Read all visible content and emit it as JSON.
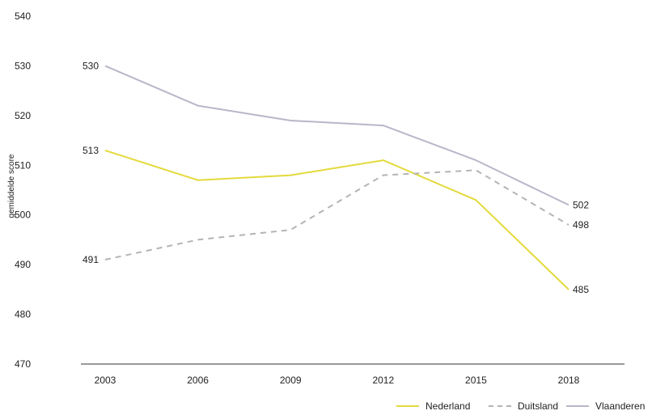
{
  "chart_data": {
    "type": "line",
    "title": "",
    "xlabel": "",
    "ylabel": "gemiddelde score",
    "x": [
      "2003",
      "2006",
      "2009",
      "2012",
      "2015",
      "2018"
    ],
    "ylim": [
      470,
      540
    ],
    "yticks": [
      470,
      480,
      490,
      500,
      510,
      520,
      530,
      540
    ],
    "grid": false,
    "legend_position": "bottom-right",
    "series": [
      {
        "name": "Nederland",
        "color": "#e3da3c",
        "dash": "solid",
        "values": [
          513,
          507,
          508,
          511,
          503,
          485
        ]
      },
      {
        "name": "Duitsland",
        "color": "#b4b4b4",
        "dash": "dashed",
        "values": [
          491,
          495,
          497,
          508,
          509,
          498
        ]
      },
      {
        "name": "Vlaanderen",
        "color": "#b9b6c9",
        "dash": "solid",
        "values": [
          530,
          522,
          519,
          518,
          511,
          502
        ]
      }
    ],
    "data_labels": [
      {
        "series": "Vlaanderen",
        "x": "2003",
        "text": "530",
        "side": "left"
      },
      {
        "series": "Nederland",
        "x": "2003",
        "text": "513",
        "side": "left"
      },
      {
        "series": "Duitsland",
        "x": "2003",
        "text": "491",
        "side": "left"
      },
      {
        "series": "Vlaanderen",
        "x": "2018",
        "text": "502",
        "side": "right"
      },
      {
        "series": "Duitsland",
        "x": "2018",
        "text": "498",
        "side": "right"
      },
      {
        "series": "Nederland",
        "x": "2018",
        "text": "485",
        "side": "right"
      }
    ]
  }
}
